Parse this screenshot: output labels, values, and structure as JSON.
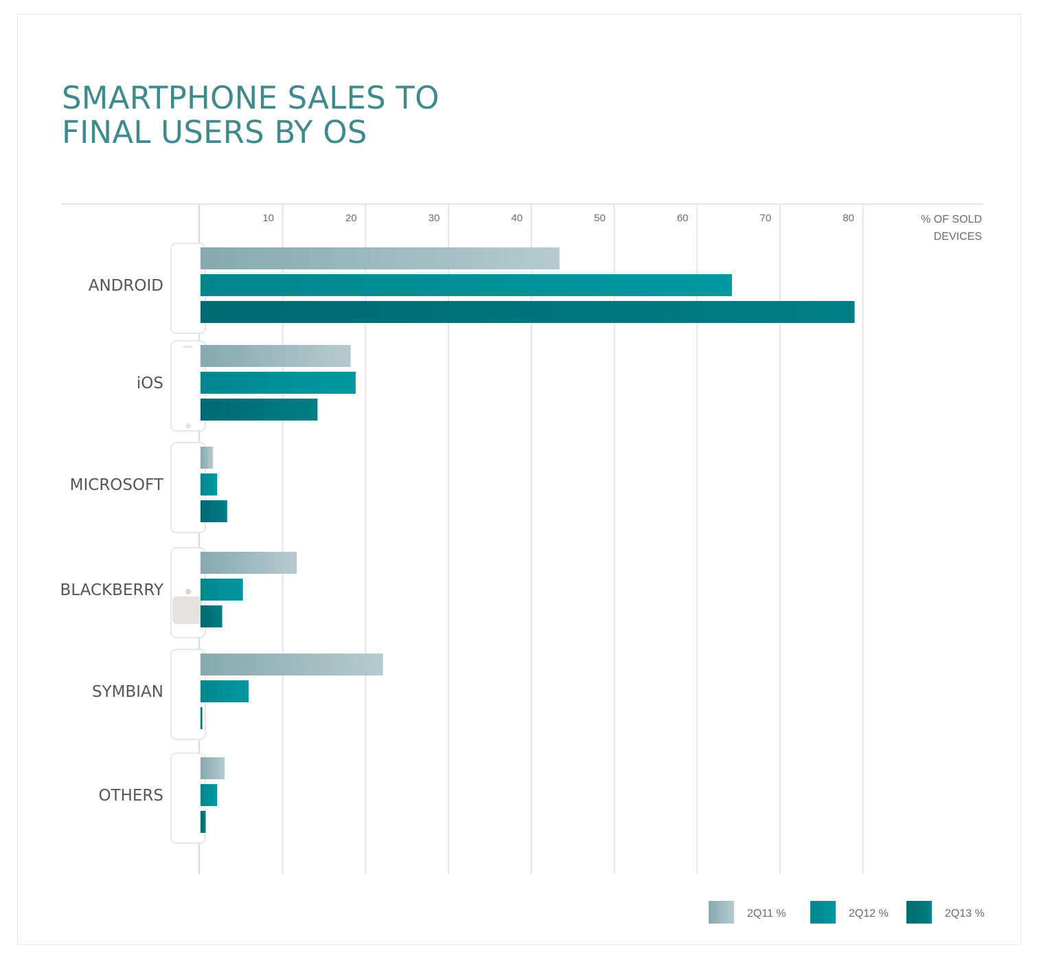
{
  "header": {
    "title_line1": "SMARTPHONE SALES TO",
    "title_line2": "FINAL USERS BY OS"
  },
  "colors": {
    "title": "#3e8a8d",
    "series": [
      [
        "#86a9ad",
        "#b6cacf"
      ],
      [
        "#00868f",
        "#0098a0"
      ],
      [
        "#006a70",
        "#007d84"
      ]
    ],
    "grid": "#e4e4ec"
  },
  "chart_data": {
    "type": "bar",
    "orientation": "horizontal",
    "title": "SMARTPHONE SALES TO FINAL USERS BY OS",
    "x_unit_label": [
      "% OF SOLD",
      "DEVICES"
    ],
    "xlim": [
      0,
      95
    ],
    "x_ticks": [
      10,
      20,
      30,
      40,
      50,
      60,
      70,
      80
    ],
    "grid": true,
    "legend_position": "bottom-right",
    "categories": [
      "ANDROID",
      "iOS",
      "MICROSOFT",
      "BLACKBERRY",
      "SYMBIAN",
      "OTHERS"
    ],
    "category_icons": [
      "phone-android-icon",
      "phone-ios-icon",
      "phone-microsoft-icon",
      "phone-blackberry-icon",
      "phone-symbian-icon",
      "phone-others-icon"
    ],
    "series": [
      {
        "name": "2Q11 %",
        "values": [
          43.4,
          18.2,
          1.6,
          11.7,
          22.1,
          3.0
        ]
      },
      {
        "name": "2Q12 %",
        "values": [
          64.2,
          18.8,
          2.1,
          5.2,
          5.9,
          2.1
        ]
      },
      {
        "name": "2Q13 %",
        "values": [
          79.0,
          14.2,
          3.3,
          2.7,
          0.3,
          0.7
        ]
      }
    ]
  }
}
